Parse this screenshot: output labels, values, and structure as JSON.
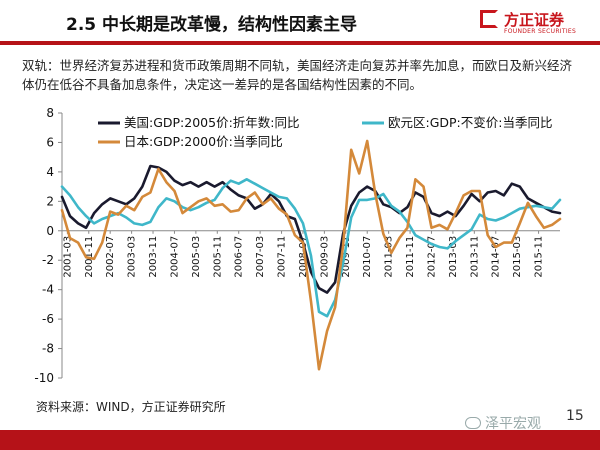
{
  "header": {
    "title": "2.5 中长期是改革慢，结构性因素主导",
    "logo_cn": "方正证券",
    "logo_en": "FOUNDER SECURITIES"
  },
  "description": "双轨：世界经济复苏进程和货币政策周期不同轨，美国经济走向复苏并率先加息，而欧日及新兴经济体仍在低谷不具备加息条件，决定这一差异的是各国结构性因素的不同。",
  "source": "资料来源：WIND，方正证券研究所",
  "watermark": "泽平宏观",
  "page_number": "15",
  "colors": {
    "us": "#1a1a2e",
    "eu": "#3fb7c9",
    "jp": "#d4893a",
    "brand_red": "#b51218"
  },
  "chart_data": {
    "type": "line",
    "ylim": [
      -10,
      8
    ],
    "yticks": [
      8,
      6,
      4,
      2,
      0,
      -2,
      -4,
      -6,
      -8,
      -10
    ],
    "xticks": [
      "2001-03",
      "2001-11",
      "2002-07",
      "2003-03",
      "2003-11",
      "2004-07",
      "2005-03",
      "2005-11",
      "2006-07",
      "2007-03",
      "2007-11",
      "2008-07",
      "2009-03",
      "2009-11",
      "2010-07",
      "2011-03",
      "2011-11",
      "2012-07",
      "2013-03",
      "2013-11",
      "2014-07",
      "2015-03",
      "2015-11"
    ],
    "x_start": 2001.0,
    "x_end": 2016.5,
    "legend_placement": "top",
    "series": [
      {
        "name": "美国:GDP:2005价:折年数:同比",
        "color": "#1a1a2e",
        "x": [
          2001.0,
          2001.25,
          2001.5,
          2001.75,
          2002.0,
          2002.25,
          2002.5,
          2002.75,
          2003.0,
          2003.25,
          2003.5,
          2003.75,
          2004.0,
          2004.25,
          2004.5,
          2004.75,
          2005.0,
          2005.25,
          2005.5,
          2005.75,
          2006.0,
          2006.25,
          2006.5,
          2006.75,
          2007.0,
          2007.25,
          2007.5,
          2007.75,
          2008.0,
          2008.25,
          2008.5,
          2008.75,
          2009.0,
          2009.25,
          2009.5,
          2009.75,
          2010.0,
          2010.25,
          2010.5,
          2010.75,
          2011.0,
          2011.25,
          2011.5,
          2011.75,
          2012.0,
          2012.25,
          2012.5,
          2012.75,
          2013.0,
          2013.25,
          2013.5,
          2013.75,
          2014.0,
          2014.25,
          2014.5,
          2014.75,
          2015.0,
          2015.25,
          2015.5,
          2015.75,
          2016.0,
          2016.25,
          2016.5
        ],
        "y": [
          2.3,
          1.0,
          0.5,
          0.2,
          1.2,
          1.8,
          2.2,
          2.0,
          1.8,
          2.2,
          3.0,
          4.4,
          4.3,
          4.0,
          3.4,
          3.1,
          3.3,
          3.0,
          3.3,
          3.0,
          3.3,
          2.8,
          2.4,
          2.2,
          1.5,
          1.8,
          2.5,
          2.0,
          1.0,
          0.8,
          -0.8,
          -2.8,
          -3.9,
          -4.2,
          -3.5,
          -0.2,
          1.7,
          2.6,
          3.0,
          2.7,
          1.8,
          1.6,
          1.2,
          1.6,
          2.6,
          2.3,
          1.2,
          1.0,
          1.3,
          1.0,
          1.7,
          2.5,
          2.0,
          2.6,
          2.7,
          2.4,
          3.2,
          3.0,
          2.2,
          1.9,
          1.6,
          1.3,
          1.2
        ]
      },
      {
        "name": "欧元区:GDP:不变价:当季同比",
        "color": "#3fb7c9",
        "x": [
          2001.0,
          2001.25,
          2001.5,
          2001.75,
          2002.0,
          2002.25,
          2002.5,
          2002.75,
          2003.0,
          2003.25,
          2003.5,
          2003.75,
          2004.0,
          2004.25,
          2004.5,
          2004.75,
          2005.0,
          2005.25,
          2005.5,
          2005.75,
          2006.0,
          2006.25,
          2006.5,
          2006.75,
          2007.0,
          2007.25,
          2007.5,
          2007.75,
          2008.0,
          2008.25,
          2008.5,
          2008.75,
          2009.0,
          2009.25,
          2009.5,
          2009.75,
          2010.0,
          2010.25,
          2010.5,
          2010.75,
          2011.0,
          2011.25,
          2011.5,
          2011.75,
          2012.0,
          2012.25,
          2012.5,
          2012.75,
          2013.0,
          2013.25,
          2013.5,
          2013.75,
          2014.0,
          2014.25,
          2014.5,
          2014.75,
          2015.0,
          2015.25,
          2015.5,
          2015.75,
          2016.0,
          2016.25,
          2016.5
        ],
        "y": [
          3.0,
          2.4,
          1.6,
          1.0,
          0.5,
          0.8,
          1.0,
          1.2,
          0.9,
          0.5,
          0.4,
          0.6,
          1.6,
          2.2,
          2.0,
          1.6,
          1.4,
          1.6,
          1.9,
          2.1,
          2.9,
          3.4,
          3.2,
          3.5,
          3.2,
          2.9,
          2.6,
          2.3,
          2.2,
          1.5,
          0.5,
          -1.7,
          -5.5,
          -5.8,
          -4.7,
          -2.2,
          0.9,
          2.1,
          2.1,
          2.2,
          2.5,
          1.7,
          1.3,
          0.6,
          -0.3,
          -0.6,
          -0.9,
          -1.1,
          -1.2,
          -0.7,
          -0.3,
          0.1,
          1.1,
          0.8,
          0.7,
          0.9,
          1.2,
          1.5,
          1.6,
          1.7,
          1.6,
          1.5,
          2.1
        ]
      },
      {
        "name": "日本:GDP:2000价:当季同比",
        "color": "#d4893a",
        "x": [
          2001.0,
          2001.25,
          2001.5,
          2001.75,
          2002.0,
          2002.25,
          2002.5,
          2002.75,
          2003.0,
          2003.25,
          2003.5,
          2003.75,
          2004.0,
          2004.25,
          2004.5,
          2004.75,
          2005.0,
          2005.25,
          2005.5,
          2005.75,
          2006.0,
          2006.25,
          2006.5,
          2006.75,
          2007.0,
          2007.25,
          2007.5,
          2007.75,
          2008.0,
          2008.25,
          2008.5,
          2008.75,
          2009.0,
          2009.25,
          2009.5,
          2009.75,
          2010.0,
          2010.25,
          2010.5,
          2010.75,
          2011.0,
          2011.25,
          2011.5,
          2011.75,
          2012.0,
          2012.25,
          2012.5,
          2012.75,
          2013.0,
          2013.25,
          2013.5,
          2013.75,
          2014.0,
          2014.25,
          2014.5,
          2014.75,
          2015.0,
          2015.25,
          2015.5,
          2015.75,
          2016.0,
          2016.25,
          2016.5
        ],
        "y": [
          1.4,
          -0.5,
          -0.8,
          -1.8,
          -1.9,
          -0.8,
          1.3,
          1.1,
          1.7,
          1.4,
          2.3,
          2.6,
          4.2,
          3.3,
          2.7,
          1.2,
          1.6,
          2.0,
          2.2,
          1.7,
          1.8,
          1.3,
          1.4,
          2.2,
          2.6,
          1.8,
          2.2,
          1.5,
          1.1,
          -0.3,
          -0.8,
          -4.8,
          -9.4,
          -6.8,
          -5.2,
          -1.0,
          5.5,
          3.9,
          6.1,
          2.5,
          -0.2,
          -1.5,
          -0.5,
          0.2,
          3.5,
          3.0,
          0.2,
          0.4,
          0.1,
          1.2,
          2.4,
          2.7,
          2.7,
          -0.3,
          -1.1,
          -0.8,
          -0.8,
          0.5,
          1.9,
          1.0,
          0.2,
          0.4,
          0.8
        ]
      }
    ]
  }
}
